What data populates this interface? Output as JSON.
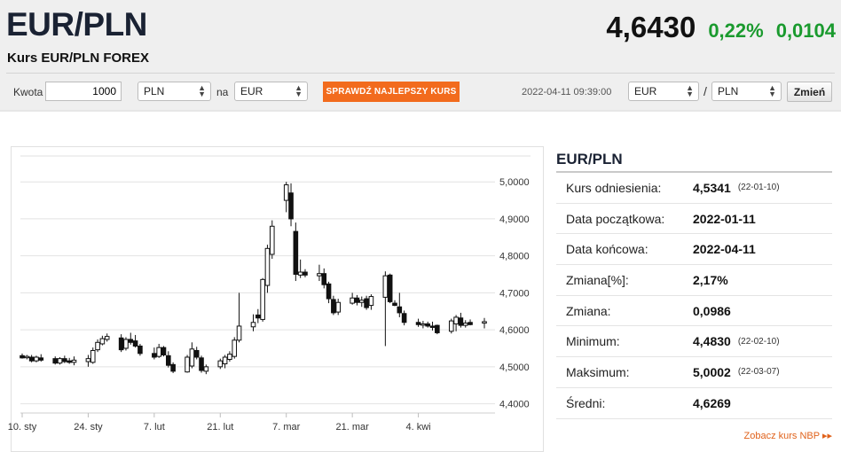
{
  "header": {
    "pair": "EUR/PLN",
    "subtitle": "Kurs EUR/PLN FOREX",
    "price": "4,6430",
    "change_pct": "0,22%",
    "change_abs": "0,0104",
    "up_color": "#1a9a2e"
  },
  "converter": {
    "amount_label": "Kwota",
    "amount_value": "1000",
    "from_currency": "PLN",
    "to_label": "na",
    "to_currency": "EUR",
    "best_rate_button": "SPRAWDŹ NAJLEPSZY KURS",
    "button_color": "#f26b1d",
    "timestamp": "2022-04-11 09:39:00",
    "base_currency": "EUR",
    "pair_slash": "/",
    "quote_currency": "PLN",
    "change_button": "Zmień"
  },
  "chart_data": {
    "type": "candlestick",
    "x_tick_labels": [
      "10. sty",
      "24. sty",
      "7. lut",
      "21. lut",
      "7. mar",
      "21. mar",
      "4. kwi"
    ],
    "y_tick_labels": [
      "4,4000",
      "4,5000",
      "4,6000",
      "4,7000",
      "4,8000",
      "4,9000",
      "5,0000"
    ],
    "ylim": [
      4.375,
      5.07
    ],
    "grid": true,
    "candles": [
      {
        "date": "2022-01-10",
        "o": 4.53,
        "h": 4.536,
        "l": 4.522,
        "c": 4.524
      },
      {
        "date": "2022-01-11",
        "o": 4.526,
        "h": 4.532,
        "l": 4.52,
        "c": 4.528
      },
      {
        "date": "2022-01-12",
        "o": 4.526,
        "h": 4.532,
        "l": 4.512,
        "c": 4.516
      },
      {
        "date": "2022-01-13",
        "o": 4.516,
        "h": 4.53,
        "l": 4.512,
        "c": 4.526
      },
      {
        "date": "2022-01-14",
        "o": 4.524,
        "h": 4.534,
        "l": 4.514,
        "c": 4.518
      },
      {
        "date": "2022-01-17",
        "o": 4.522,
        "h": 4.528,
        "l": 4.506,
        "c": 4.51
      },
      {
        "date": "2022-01-18",
        "o": 4.51,
        "h": 4.526,
        "l": 4.506,
        "c": 4.522
      },
      {
        "date": "2022-01-19",
        "o": 4.522,
        "h": 4.53,
        "l": 4.51,
        "c": 4.514
      },
      {
        "date": "2022-01-20",
        "o": 4.516,
        "h": 4.524,
        "l": 4.508,
        "c": 4.512
      },
      {
        "date": "2022-01-21",
        "o": 4.512,
        "h": 4.528,
        "l": 4.504,
        "c": 4.518
      },
      {
        "date": "2022-01-24",
        "o": 4.514,
        "h": 4.532,
        "l": 4.5,
        "c": 4.522
      },
      {
        "date": "2022-01-25",
        "o": 4.512,
        "h": 4.552,
        "l": 4.508,
        "c": 4.544
      },
      {
        "date": "2022-01-26",
        "o": 4.546,
        "h": 4.574,
        "l": 4.54,
        "c": 4.566
      },
      {
        "date": "2022-01-27",
        "o": 4.562,
        "h": 4.584,
        "l": 4.558,
        "c": 4.576
      },
      {
        "date": "2022-01-28",
        "o": 4.574,
        "h": 4.59,
        "l": 4.568,
        "c": 4.582
      },
      {
        "date": "2022-01-31",
        "o": 4.578,
        "h": 4.588,
        "l": 4.54,
        "c": 4.546
      },
      {
        "date": "2022-02-01",
        "o": 4.55,
        "h": 4.58,
        "l": 4.544,
        "c": 4.574
      },
      {
        "date": "2022-02-02",
        "o": 4.574,
        "h": 4.592,
        "l": 4.56,
        "c": 4.566
      },
      {
        "date": "2022-02-03",
        "o": 4.57,
        "h": 4.586,
        "l": 4.552,
        "c": 4.556
      },
      {
        "date": "2022-02-04",
        "o": 4.556,
        "h": 4.562,
        "l": 4.53,
        "c": 4.536
      },
      {
        "date": "2022-02-07",
        "o": 4.536,
        "h": 4.552,
        "l": 4.52,
        "c": 4.526
      },
      {
        "date": "2022-02-08",
        "o": 4.528,
        "h": 4.562,
        "l": 4.524,
        "c": 4.552
      },
      {
        "date": "2022-02-09",
        "o": 4.552,
        "h": 4.556,
        "l": 4.528,
        "c": 4.532
      },
      {
        "date": "2022-02-10",
        "o": 4.53,
        "h": 4.542,
        "l": 4.498,
        "c": 4.504
      },
      {
        "date": "2022-02-11",
        "o": 4.506,
        "h": 4.512,
        "l": 4.483,
        "c": 4.488
      },
      {
        "date": "2022-02-14",
        "o": 4.486,
        "h": 4.532,
        "l": 4.484,
        "c": 4.526
      },
      {
        "date": "2022-02-15",
        "o": 4.502,
        "h": 4.566,
        "l": 4.496,
        "c": 4.548
      },
      {
        "date": "2022-02-16",
        "o": 4.544,
        "h": 4.554,
        "l": 4.52,
        "c": 4.526
      },
      {
        "date": "2022-02-17",
        "o": 4.524,
        "h": 4.53,
        "l": 4.484,
        "c": 4.49
      },
      {
        "date": "2022-02-18",
        "o": 4.488,
        "h": 4.506,
        "l": 4.48,
        "c": 4.5
      },
      {
        "date": "2022-02-21",
        "o": 4.5,
        "h": 4.522,
        "l": 4.494,
        "c": 4.516
      },
      {
        "date": "2022-02-22",
        "o": 4.508,
        "h": 4.532,
        "l": 4.496,
        "c": 4.526
      },
      {
        "date": "2022-02-23",
        "o": 4.52,
        "h": 4.542,
        "l": 4.514,
        "c": 4.534
      },
      {
        "date": "2022-02-24",
        "o": 4.528,
        "h": 4.58,
        "l": 4.522,
        "c": 4.572
      },
      {
        "date": "2022-02-25",
        "o": 4.572,
        "h": 4.7,
        "l": 4.566,
        "c": 4.61
      },
      {
        "date": "2022-02-28",
        "o": 4.608,
        "h": 4.642,
        "l": 4.596,
        "c": 4.62
      },
      {
        "date": "2022-03-01",
        "o": 4.64,
        "h": 4.656,
        "l": 4.618,
        "c": 4.632
      },
      {
        "date": "2022-03-02",
        "o": 4.628,
        "h": 4.74,
        "l": 4.622,
        "c": 4.736
      },
      {
        "date": "2022-03-03",
        "o": 4.72,
        "h": 4.83,
        "l": 4.7,
        "c": 4.82
      },
      {
        "date": "2022-03-04",
        "o": 4.804,
        "h": 4.896,
        "l": 4.792,
        "c": 4.88
      },
      {
        "date": "2022-03-07",
        "o": 4.95,
        "h": 5.0,
        "l": 4.918,
        "c": 4.992
      },
      {
        "date": "2022-03-08",
        "o": 4.97,
        "h": 4.996,
        "l": 4.88,
        "c": 4.9
      },
      {
        "date": "2022-03-09",
        "o": 4.866,
        "h": 4.89,
        "l": 4.732,
        "c": 4.75
      },
      {
        "date": "2022-03-10",
        "o": 4.748,
        "h": 4.79,
        "l": 4.74,
        "c": 4.756
      },
      {
        "date": "2022-03-11",
        "o": 4.756,
        "h": 4.764,
        "l": 4.742,
        "c": 4.748
      },
      {
        "date": "2022-03-14",
        "o": 4.746,
        "h": 4.776,
        "l": 4.732,
        "c": 4.752
      },
      {
        "date": "2022-03-15",
        "o": 4.752,
        "h": 4.766,
        "l": 4.712,
        "c": 4.722
      },
      {
        "date": "2022-03-16",
        "o": 4.724,
        "h": 4.73,
        "l": 4.672,
        "c": 4.684
      },
      {
        "date": "2022-03-17",
        "o": 4.682,
        "h": 4.692,
        "l": 4.64,
        "c": 4.646
      },
      {
        "date": "2022-03-18",
        "o": 4.648,
        "h": 4.684,
        "l": 4.64,
        "c": 4.674
      },
      {
        "date": "2022-03-21",
        "o": 4.672,
        "h": 4.7,
        "l": 4.668,
        "c": 4.686
      },
      {
        "date": "2022-03-22",
        "o": 4.686,
        "h": 4.694,
        "l": 4.666,
        "c": 4.674
      },
      {
        "date": "2022-03-23",
        "o": 4.674,
        "h": 4.69,
        "l": 4.662,
        "c": 4.68
      },
      {
        "date": "2022-03-24",
        "o": 4.684,
        "h": 4.692,
        "l": 4.654,
        "c": 4.66
      },
      {
        "date": "2022-03-25",
        "o": 4.666,
        "h": 4.696,
        "l": 4.654,
        "c": 4.69
      },
      {
        "date": "2022-03-28",
        "o": 4.688,
        "h": 4.758,
        "l": 4.556,
        "c": 4.746
      },
      {
        "date": "2022-03-29",
        "o": 4.748,
        "h": 4.752,
        "l": 4.672,
        "c": 4.676
      },
      {
        "date": "2022-03-30",
        "o": 4.672,
        "h": 4.68,
        "l": 4.664,
        "c": 4.666
      },
      {
        "date": "2022-03-31",
        "o": 4.662,
        "h": 4.7,
        "l": 4.634,
        "c": 4.646
      },
      {
        "date": "2022-04-01",
        "o": 4.644,
        "h": 4.652,
        "l": 4.612,
        "c": 4.62
      },
      {
        "date": "2022-04-04",
        "o": 4.62,
        "h": 4.63,
        "l": 4.608,
        "c": 4.614
      },
      {
        "date": "2022-04-05",
        "o": 4.614,
        "h": 4.624,
        "l": 4.604,
        "c": 4.616
      },
      {
        "date": "2022-04-06",
        "o": 4.616,
        "h": 4.622,
        "l": 4.606,
        "c": 4.61
      },
      {
        "date": "2022-04-07",
        "o": 4.61,
        "h": 4.622,
        "l": 4.598,
        "c": 4.608
      },
      {
        "date": "2022-04-08",
        "o": 4.612,
        "h": 4.614,
        "l": 4.588,
        "c": 4.592
      },
      {
        "date": "2022-04-11",
        "o": 4.596,
        "h": 4.63,
        "l": 4.59,
        "c": 4.624
      },
      {
        "date": "2022-04-12",
        "o": 4.616,
        "h": 4.64,
        "l": 4.596,
        "c": 4.634
      },
      {
        "date": "2022-04-13",
        "o": 4.632,
        "h": 4.646,
        "l": 4.606,
        "c": 4.612
      },
      {
        "date": "2022-04-14",
        "o": 4.612,
        "h": 4.626,
        "l": 4.606,
        "c": 4.618
      },
      {
        "date": "2022-04-15",
        "o": 4.62,
        "h": 4.628,
        "l": 4.612,
        "c": 4.614
      },
      {
        "date": "2022-04-18",
        "o": 4.618,
        "h": 4.632,
        "l": 4.604,
        "c": 4.622
      }
    ]
  },
  "stats": {
    "title": "EUR/PLN",
    "rows": [
      {
        "key": "Kurs odniesienia:",
        "value": "4,5341",
        "date": "(22-01-10)"
      },
      {
        "key": "Data początkowa:",
        "value": "2022-01-11",
        "date": ""
      },
      {
        "key": "Data końcowa:",
        "value": "2022-04-11",
        "date": ""
      },
      {
        "key": "Zmiana[%]:",
        "value": "2,17%",
        "date": ""
      },
      {
        "key": "Zmiana:",
        "value": "0,0986",
        "date": ""
      },
      {
        "key": "Minimum:",
        "value": "4,4830",
        "date": "(22-02-10)"
      },
      {
        "key": "Maksimum:",
        "value": "5,0002",
        "date": "(22-03-07)"
      },
      {
        "key": "Średni:",
        "value": "4,6269",
        "date": ""
      }
    ],
    "nbp_link": "Zobacz kurs NBP ▸▸"
  }
}
